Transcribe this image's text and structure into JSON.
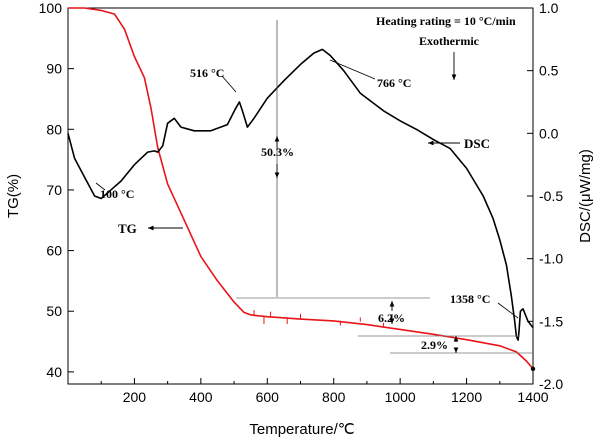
{
  "chart_data": {
    "type": "line",
    "title": "",
    "xlabel": "Temperature/℃",
    "ylabel_left": "TG(%)",
    "ylabel_right": "DSC/(μW/mg)",
    "xlim": [
      0,
      1400
    ],
    "ylim_left": [
      38,
      100
    ],
    "ylim_right": [
      -2.0,
      1.0
    ],
    "x_ticks": [
      200,
      400,
      600,
      800,
      1000,
      1200,
      1400
    ],
    "y_ticks_left": [
      40,
      50,
      60,
      70,
      80,
      90,
      100
    ],
    "y_ticks_right": [
      -2.0,
      -1.5,
      -1.0,
      -0.5,
      0.0,
      0.5,
      1.0
    ],
    "x_tick_labels": [
      "200",
      "400",
      "600",
      "800",
      "1000",
      "1200",
      "1400"
    ],
    "y_tick_labels_left": [
      "40",
      "50",
      "60",
      "70",
      "80",
      "90",
      "100"
    ],
    "y_tick_labels_right": [
      "-2.0",
      "-1.5",
      "-1.0",
      "-0.5",
      "0.0",
      "0.5",
      "1.0"
    ],
    "grid": false,
    "series": [
      {
        "name": "TG",
        "axis": "left",
        "color": "#e8141a",
        "x": [
          0,
          50,
          100,
          140,
          170,
          200,
          230,
          250,
          270,
          300,
          350,
          400,
          450,
          500,
          530,
          550,
          600,
          700,
          800,
          900,
          1000,
          1100,
          1200,
          1300,
          1350,
          1380,
          1400
        ],
        "y": [
          100,
          100,
          99.6,
          99,
          96.5,
          92,
          88.5,
          83.5,
          77,
          71,
          65,
          59,
          55,
          51.5,
          49.8,
          49.4,
          49.1,
          48.7,
          48.4,
          47.8,
          47,
          46.2,
          45.3,
          44.3,
          43.3,
          41.8,
          40.5
        ]
      },
      {
        "name": "DSC",
        "axis": "right",
        "color": "#000000",
        "x": [
          0,
          20,
          50,
          80,
          100,
          130,
          160,
          200,
          240,
          260,
          270,
          285,
          300,
          320,
          340,
          380,
          430,
          480,
          505,
          516,
          525,
          540,
          560,
          600,
          650,
          700,
          740,
          766,
          790,
          830,
          880,
          950,
          1000,
          1050,
          1100,
          1150,
          1200,
          1250,
          1280,
          1300,
          1320,
          1335,
          1345,
          1350,
          1355,
          1358,
          1362,
          1370,
          1385,
          1400
        ],
        "y": [
          0.0,
          -0.2,
          -0.35,
          -0.5,
          -0.52,
          -0.45,
          -0.38,
          -0.25,
          -0.15,
          -0.14,
          -0.15,
          -0.1,
          0.08,
          0.12,
          0.05,
          0.02,
          0.02,
          0.07,
          0.2,
          0.25,
          0.18,
          0.05,
          0.12,
          0.28,
          0.42,
          0.55,
          0.64,
          0.67,
          0.62,
          0.5,
          0.32,
          0.18,
          0.1,
          0.03,
          -0.05,
          -0.12,
          -0.28,
          -0.5,
          -0.68,
          -0.85,
          -1.05,
          -1.3,
          -1.5,
          -1.62,
          -1.65,
          -1.58,
          -1.42,
          -1.4,
          -1.5,
          -1.55
        ]
      }
    ],
    "annotations": {
      "heating": "Heating rating = 10 °C/min",
      "exothermic": "Exothermic",
      "peak_516": "516 °C",
      "peak_766": "766 °C",
      "peak_100": "100 °C",
      "peak_1358": "1358 °C",
      "dsc_label": "DSC",
      "tg_label": "TG",
      "loss_50_3": "50.3%",
      "loss_6_2": "6.2%",
      "loss_2_9": "2.9%"
    }
  }
}
